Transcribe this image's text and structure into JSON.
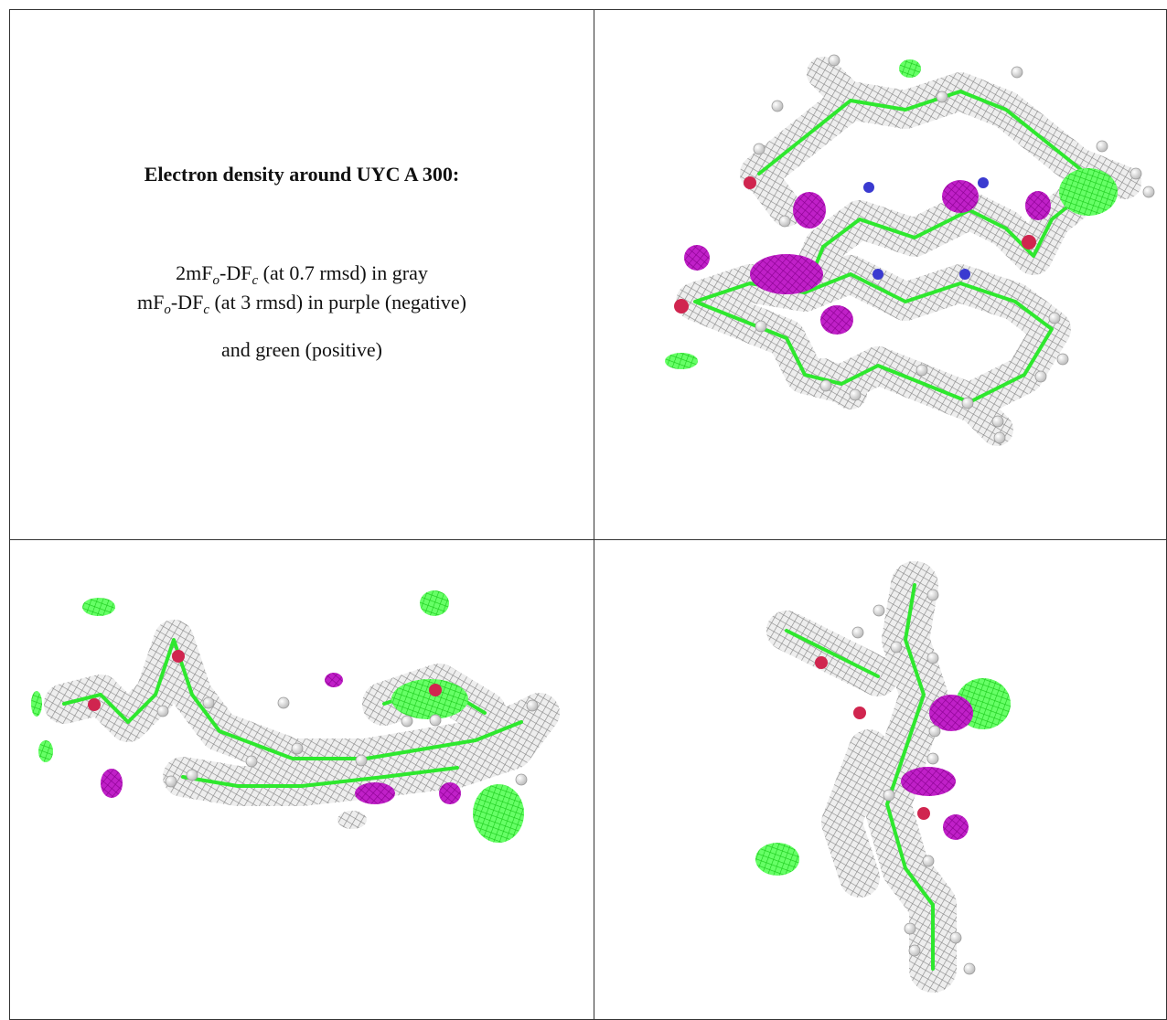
{
  "figure": {
    "title": "Electron density around UYC A 300:",
    "legend": [
      [
        "2mF",
        "o",
        "-DF",
        "c",
        " (at 0.7 rmsd) in gray"
      ],
      [
        "mF",
        "o",
        "-DF",
        "c",
        " (at 3 rmsd) in purple (negative)"
      ],
      [
        "and green (positive)"
      ]
    ]
  }
}
